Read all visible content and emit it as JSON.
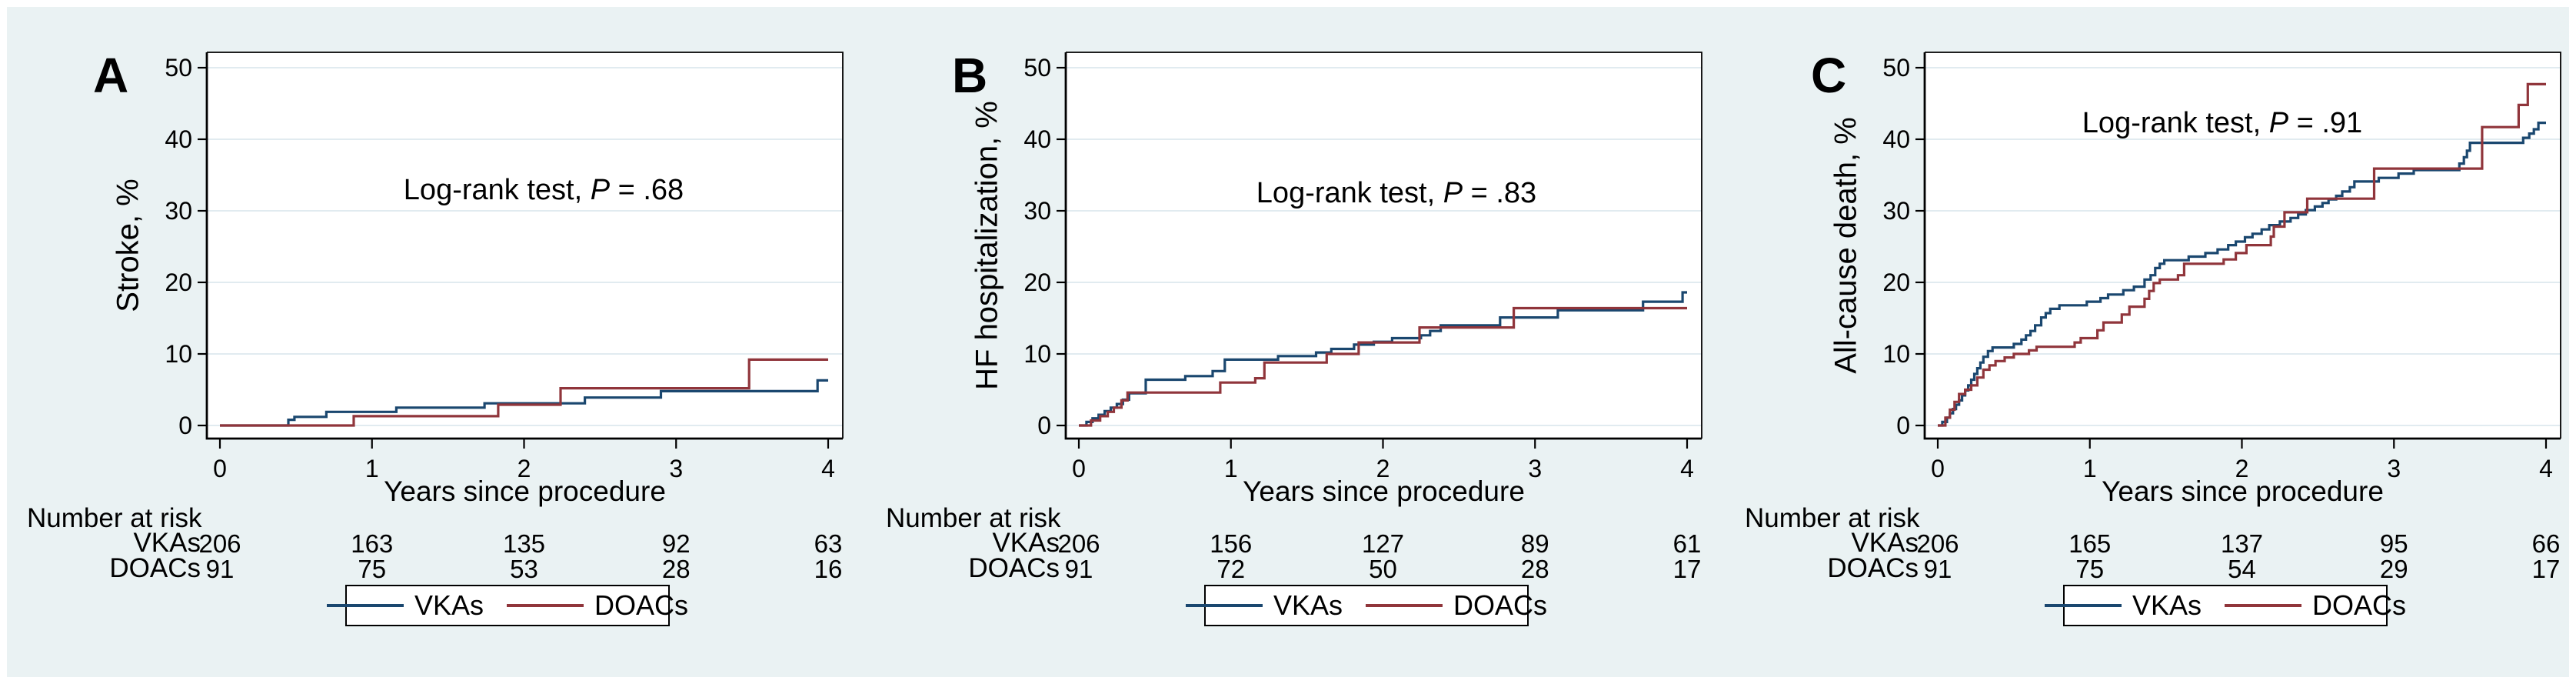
{
  "figure": {
    "background_color": "#eaf2f3",
    "plot_background": "#ffffff",
    "grid_color": "#dde8ee",
    "axis_color": "#000000",
    "vka_color": "#1a476f",
    "doac_color": "#90353b"
  },
  "chart_data": [
    {
      "panel_label": "A",
      "type": "line",
      "subtype": "cumulative-incidence-step",
      "ylabel": "Stroke, %",
      "xlabel": "Years since procedure",
      "annotation": {
        "prefix": "Log-rank test, ",
        "p_symbol": "P",
        "suffix": " = .68"
      },
      "p_value": ".68",
      "xlim": [
        0,
        4
      ],
      "ylim": [
        0,
        52
      ],
      "xticks": [
        0,
        1,
        2,
        3,
        4
      ],
      "yticks": [
        0,
        10,
        20,
        30,
        40,
        50
      ],
      "grid": true,
      "legend_position": "bottom",
      "series": [
        {
          "name": "VKAs",
          "color": "#1a476f",
          "points": [
            [
              0,
              0
            ],
            [
              0.45,
              0.8
            ],
            [
              0.49,
              1.2
            ],
            [
              0.7,
              1.9
            ],
            [
              1.16,
              2.5
            ],
            [
              1.74,
              3.1
            ],
            [
              2.4,
              3.9
            ],
            [
              2.9,
              4.8
            ],
            [
              3.93,
              6.3
            ]
          ]
        },
        {
          "name": "DOACs",
          "color": "#90353b",
          "points": [
            [
              0,
              0
            ],
            [
              0.88,
              1.3
            ],
            [
              1.83,
              2.9
            ],
            [
              2.24,
              5.2
            ],
            [
              3.48,
              9.2
            ]
          ]
        }
      ],
      "risk_table": {
        "title": "Number at risk",
        "rows": [
          {
            "label": "VKAs",
            "counts": [
              206,
              163,
              135,
              92,
              63
            ]
          },
          {
            "label": "DOACs",
            "counts": [
              91,
              75,
              53,
              28,
              16
            ]
          }
        ]
      }
    },
    {
      "panel_label": "B",
      "type": "line",
      "subtype": "cumulative-incidence-step",
      "ylabel": "HF hospitalization, %",
      "xlabel": "Years since procedure",
      "annotation": {
        "prefix": "Log-rank test, ",
        "p_symbol": "P",
        "suffix": " = .83"
      },
      "p_value": ".83",
      "xlim": [
        0,
        4
      ],
      "ylim": [
        0,
        52
      ],
      "xticks": [
        0,
        1,
        2,
        3,
        4
      ],
      "yticks": [
        0,
        10,
        20,
        30,
        40,
        50
      ],
      "grid": true,
      "legend_position": "bottom",
      "series": [
        {
          "name": "VKAs",
          "color": "#1a476f",
          "points": [
            [
              0,
              0
            ],
            [
              0.05,
              0.5
            ],
            [
              0.09,
              1.0
            ],
            [
              0.13,
              1.5
            ],
            [
              0.17,
              2.0
            ],
            [
              0.21,
              2.5
            ],
            [
              0.25,
              3.0
            ],
            [
              0.29,
              3.6
            ],
            [
              0.33,
              4.5
            ],
            [
              0.44,
              6.4
            ],
            [
              0.7,
              6.9
            ],
            [
              0.88,
              7.6
            ],
            [
              0.96,
              9.2
            ],
            [
              1.31,
              9.7
            ],
            [
              1.56,
              10.2
            ],
            [
              1.66,
              10.7
            ],
            [
              1.81,
              11.3
            ],
            [
              1.94,
              11.7
            ],
            [
              2.06,
              12.2
            ],
            [
              2.25,
              12.6
            ],
            [
              2.31,
              13.2
            ],
            [
              2.38,
              14.0
            ],
            [
              2.77,
              15.1
            ],
            [
              3.15,
              16.1
            ],
            [
              3.71,
              17.3
            ],
            [
              3.97,
              18.6
            ]
          ]
        },
        {
          "name": "DOACs",
          "color": "#90353b",
          "points": [
            [
              0,
              0
            ],
            [
              0.08,
              0.7
            ],
            [
              0.14,
              1.3
            ],
            [
              0.19,
              1.9
            ],
            [
              0.23,
              2.5
            ],
            [
              0.28,
              3.5
            ],
            [
              0.32,
              4.6
            ],
            [
              0.93,
              6.0
            ],
            [
              1.16,
              6.6
            ],
            [
              1.22,
              8.8
            ],
            [
              1.63,
              10.0
            ],
            [
              1.84,
              11.6
            ],
            [
              2.24,
              13.7
            ],
            [
              2.86,
              16.4
            ]
          ]
        }
      ],
      "risk_table": {
        "title": "Number at risk",
        "rows": [
          {
            "label": "VKAs",
            "counts": [
              206,
              156,
              127,
              89,
              61
            ]
          },
          {
            "label": "DOACs",
            "counts": [
              91,
              72,
              50,
              28,
              17
            ]
          }
        ]
      }
    },
    {
      "panel_label": "C",
      "type": "line",
      "subtype": "cumulative-incidence-step",
      "ylabel": "All-cause death, %",
      "xlabel": "Years since procedure",
      "annotation": {
        "prefix": "Log-rank test, ",
        "p_symbol": "P",
        "suffix": " = .91"
      },
      "p_value": ".91",
      "xlim": [
        0,
        4
      ],
      "ylim": [
        0,
        52
      ],
      "xticks": [
        0,
        1,
        2,
        3,
        4
      ],
      "yticks": [
        0,
        10,
        20,
        30,
        40,
        50
      ],
      "grid": true,
      "legend_position": "bottom",
      "series": [
        {
          "name": "VKAs",
          "color": "#1a476f",
          "points": [
            [
              0,
              0
            ],
            [
              0.03,
              0.5
            ],
            [
              0.06,
              1.1
            ],
            [
              0.08,
              1.7
            ],
            [
              0.1,
              2.3
            ],
            [
              0.12,
              2.9
            ],
            [
              0.14,
              3.5
            ],
            [
              0.16,
              4.2
            ],
            [
              0.18,
              4.9
            ],
            [
              0.2,
              5.6
            ],
            [
              0.22,
              6.4
            ],
            [
              0.24,
              7.2
            ],
            [
              0.26,
              8.0
            ],
            [
              0.28,
              8.8
            ],
            [
              0.3,
              9.6
            ],
            [
              0.33,
              10.4
            ],
            [
              0.36,
              10.9
            ],
            [
              0.5,
              11.4
            ],
            [
              0.55,
              12.0
            ],
            [
              0.58,
              12.6
            ],
            [
              0.61,
              13.2
            ],
            [
              0.64,
              14.0
            ],
            [
              0.68,
              15.1
            ],
            [
              0.71,
              15.7
            ],
            [
              0.74,
              16.3
            ],
            [
              0.8,
              16.8
            ],
            [
              0.98,
              17.3
            ],
            [
              1.07,
              17.8
            ],
            [
              1.12,
              18.3
            ],
            [
              1.22,
              18.9
            ],
            [
              1.29,
              19.4
            ],
            [
              1.36,
              20.4
            ],
            [
              1.4,
              21.0
            ],
            [
              1.43,
              22.0
            ],
            [
              1.46,
              22.6
            ],
            [
              1.49,
              23.1
            ],
            [
              1.65,
              23.6
            ],
            [
              1.76,
              24.1
            ],
            [
              1.84,
              24.6
            ],
            [
              1.91,
              25.2
            ],
            [
              1.96,
              25.7
            ],
            [
              2.02,
              26.3
            ],
            [
              2.07,
              26.8
            ],
            [
              2.13,
              27.4
            ],
            [
              2.18,
              28.0
            ],
            [
              2.25,
              28.5
            ],
            [
              2.32,
              29.0
            ],
            [
              2.37,
              29.5
            ],
            [
              2.42,
              30.1
            ],
            [
              2.48,
              30.6
            ],
            [
              2.53,
              31.1
            ],
            [
              2.57,
              31.6
            ],
            [
              2.62,
              32.1
            ],
            [
              2.66,
              32.7
            ],
            [
              2.71,
              33.3
            ],
            [
              2.74,
              34.1
            ],
            [
              2.9,
              34.6
            ],
            [
              3.03,
              35.2
            ],
            [
              3.13,
              35.7
            ],
            [
              3.43,
              36.6
            ],
            [
              3.46,
              37.5
            ],
            [
              3.48,
              38.4
            ],
            [
              3.5,
              39.5
            ],
            [
              3.85,
              40.2
            ],
            [
              3.89,
              40.8
            ],
            [
              3.92,
              41.4
            ],
            [
              3.95,
              42.3
            ]
          ]
        },
        {
          "name": "DOACs",
          "color": "#90353b",
          "points": [
            [
              0,
              0
            ],
            [
              0.05,
              1.1
            ],
            [
              0.08,
              2.2
            ],
            [
              0.11,
              3.3
            ],
            [
              0.14,
              4.4
            ],
            [
              0.18,
              5.0
            ],
            [
              0.22,
              5.6
            ],
            [
              0.26,
              6.7
            ],
            [
              0.3,
              7.8
            ],
            [
              0.34,
              8.4
            ],
            [
              0.38,
              9.0
            ],
            [
              0.44,
              9.5
            ],
            [
              0.5,
              10.0
            ],
            [
              0.6,
              10.5
            ],
            [
              0.65,
              11.0
            ],
            [
              0.9,
              11.6
            ],
            [
              0.94,
              12.2
            ],
            [
              1.05,
              13.3
            ],
            [
              1.09,
              14.4
            ],
            [
              1.21,
              15.5
            ],
            [
              1.26,
              16.6
            ],
            [
              1.36,
              17.7
            ],
            [
              1.39,
              18.8
            ],
            [
              1.42,
              19.9
            ],
            [
              1.46,
              20.4
            ],
            [
              1.58,
              21.0
            ],
            [
              1.62,
              22.6
            ],
            [
              1.88,
              23.2
            ],
            [
              1.96,
              24.1
            ],
            [
              2.03,
              25.2
            ],
            [
              2.19,
              26.4
            ],
            [
              2.21,
              27.8
            ],
            [
              2.28,
              29.8
            ],
            [
              2.43,
              31.7
            ],
            [
              2.87,
              35.9
            ],
            [
              3.58,
              41.7
            ],
            [
              3.82,
              44.8
            ],
            [
              3.88,
              47.7
            ]
          ]
        }
      ],
      "risk_table": {
        "title": "Number at risk",
        "rows": [
          {
            "label": "VKAs",
            "counts": [
              206,
              165,
              137,
              95,
              66
            ]
          },
          {
            "label": "DOACs",
            "counts": [
              91,
              75,
              54,
              29,
              17
            ]
          }
        ]
      }
    }
  ]
}
